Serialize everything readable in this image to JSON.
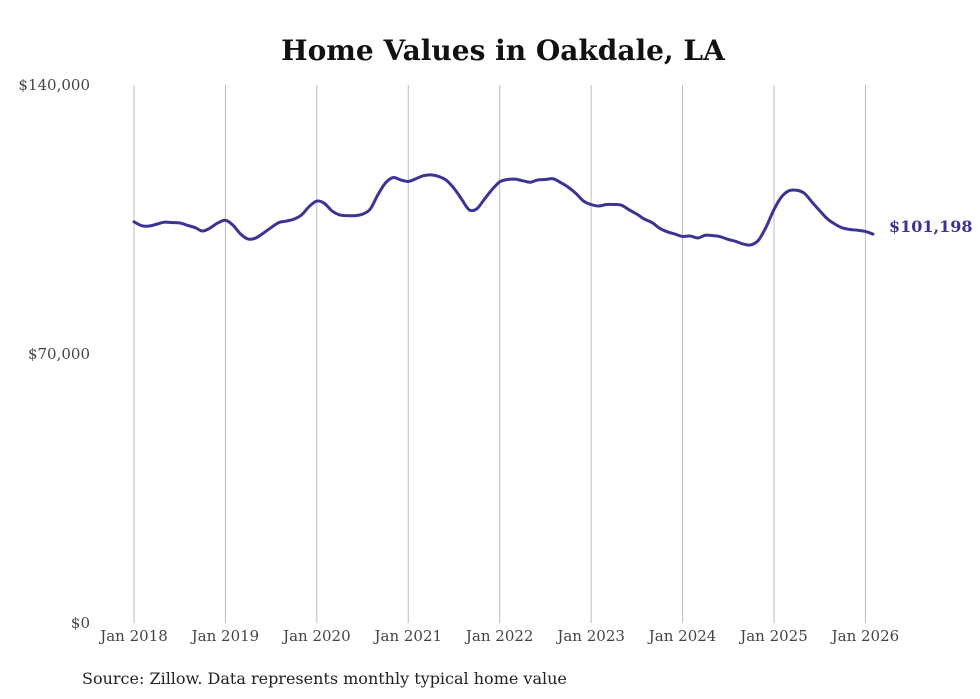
{
  "chart_data": {
    "type": "line",
    "title": "Home Values in Oakdale, LA",
    "xlabel": "",
    "ylabel": "",
    "ylim": [
      0,
      140000
    ],
    "yticks": [
      0,
      70000,
      140000
    ],
    "ytick_labels": [
      "$0",
      "$70,000",
      "$140,000"
    ],
    "xlim": [
      2018.0,
      2026.083
    ],
    "xticks": [
      2018,
      2019,
      2020,
      2021,
      2022,
      2023,
      2024,
      2025,
      2026
    ],
    "xtick_labels": [
      "Jan 2018",
      "Jan 2019",
      "Jan 2020",
      "Jan 2021",
      "Jan 2022",
      "Jan 2023",
      "Jan 2024",
      "Jan 2025",
      "Jan 2026"
    ],
    "grid": "vertical",
    "line_color": "#3b3494",
    "series": [
      {
        "name": "Typical home value",
        "x": [
          2018.0,
          2018.083,
          2018.167,
          2018.25,
          2018.333,
          2018.417,
          2018.5,
          2018.583,
          2018.667,
          2018.75,
          2018.833,
          2018.917,
          2019.0,
          2019.083,
          2019.167,
          2019.25,
          2019.333,
          2019.417,
          2019.5,
          2019.583,
          2019.667,
          2019.75,
          2019.833,
          2019.917,
          2020.0,
          2020.083,
          2020.167,
          2020.25,
          2020.333,
          2020.417,
          2020.5,
          2020.583,
          2020.667,
          2020.75,
          2020.833,
          2020.917,
          2021.0,
          2021.083,
          2021.167,
          2021.25,
          2021.333,
          2021.417,
          2021.5,
          2021.583,
          2021.667,
          2021.75,
          2021.833,
          2021.917,
          2022.0,
          2022.083,
          2022.167,
          2022.25,
          2022.333,
          2022.417,
          2022.5,
          2022.583,
          2022.667,
          2022.75,
          2022.833,
          2022.917,
          2023.0,
          2023.083,
          2023.167,
          2023.25,
          2023.333,
          2023.417,
          2023.5,
          2023.583,
          2023.667,
          2023.75,
          2023.833,
          2023.917,
          2024.0,
          2024.083,
          2024.167,
          2024.25,
          2024.333,
          2024.417,
          2024.5,
          2024.583,
          2024.667,
          2024.75,
          2024.833,
          2024.917,
          2025.0,
          2025.083,
          2025.167,
          2025.25,
          2025.333,
          2025.417,
          2025.5,
          2025.583,
          2025.667,
          2025.75,
          2025.833,
          2025.917,
          2026.0,
          2026.083
        ],
        "values": [
          104400,
          103400,
          103300,
          103800,
          104300,
          104200,
          104100,
          103500,
          102900,
          102000,
          102800,
          104100,
          104800,
          103500,
          101200,
          99900,
          100200,
          101500,
          102900,
          104200,
          104600,
          105100,
          106200,
          108400,
          109800,
          109200,
          107200,
          106200,
          106000,
          106000,
          106400,
          107700,
          111400,
          114500,
          115900,
          115300,
          114900,
          115600,
          116400,
          116600,
          116200,
          115200,
          113100,
          110300,
          107500,
          107800,
          110300,
          112800,
          114800,
          115400,
          115500,
          115100,
          114700,
          115300,
          115400,
          115600,
          114600,
          113400,
          111800,
          109800,
          108900,
          108500,
          108900,
          108900,
          108700,
          107500,
          106400,
          105100,
          104200,
          102700,
          101800,
          101200,
          100600,
          100700,
          100200,
          100900,
          100800,
          100500,
          99800,
          99300,
          98600,
          98400,
          99700,
          103200,
          107600,
          110900,
          112500,
          112600,
          111800,
          109500,
          107300,
          105200,
          103800,
          102800,
          102400,
          102200,
          101900,
          101198
        ]
      }
    ],
    "end_label": "$101,198",
    "source": "Source: Zillow. Data represents monthly typical home value"
  }
}
